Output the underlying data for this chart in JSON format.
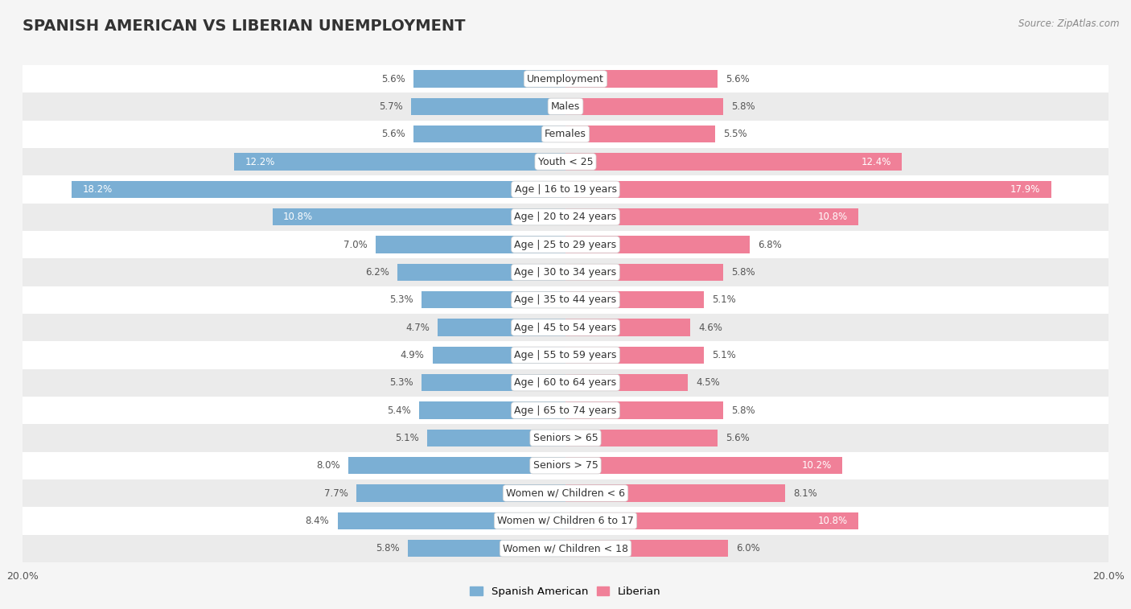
{
  "title": "SPANISH AMERICAN VS LIBERIAN UNEMPLOYMENT",
  "source": "Source: ZipAtlas.com",
  "categories": [
    "Unemployment",
    "Males",
    "Females",
    "Youth < 25",
    "Age | 16 to 19 years",
    "Age | 20 to 24 years",
    "Age | 25 to 29 years",
    "Age | 30 to 34 years",
    "Age | 35 to 44 years",
    "Age | 45 to 54 years",
    "Age | 55 to 59 years",
    "Age | 60 to 64 years",
    "Age | 65 to 74 years",
    "Seniors > 65",
    "Seniors > 75",
    "Women w/ Children < 6",
    "Women w/ Children 6 to 17",
    "Women w/ Children < 18"
  ],
  "spanish_american": [
    5.6,
    5.7,
    5.6,
    12.2,
    18.2,
    10.8,
    7.0,
    6.2,
    5.3,
    4.7,
    4.9,
    5.3,
    5.4,
    5.1,
    8.0,
    7.7,
    8.4,
    5.8
  ],
  "liberian": [
    5.6,
    5.8,
    5.5,
    12.4,
    17.9,
    10.8,
    6.8,
    5.8,
    5.1,
    4.6,
    5.1,
    4.5,
    5.8,
    5.6,
    10.2,
    8.1,
    10.8,
    6.0
  ],
  "spanish_color": "#7bafd4",
  "liberian_color": "#f08098",
  "axis_limit": 20.0,
  "bg_color": "#f5f5f5",
  "row_color_even": "#ffffff",
  "row_color_odd": "#ebebeb",
  "title_fontsize": 14,
  "label_fontsize": 9,
  "value_fontsize": 8.5,
  "title_color": "#333333",
  "source_color": "#888888",
  "value_color_outside": "#555555",
  "value_color_inside": "#ffffff",
  "threshold_inside": 10.0
}
